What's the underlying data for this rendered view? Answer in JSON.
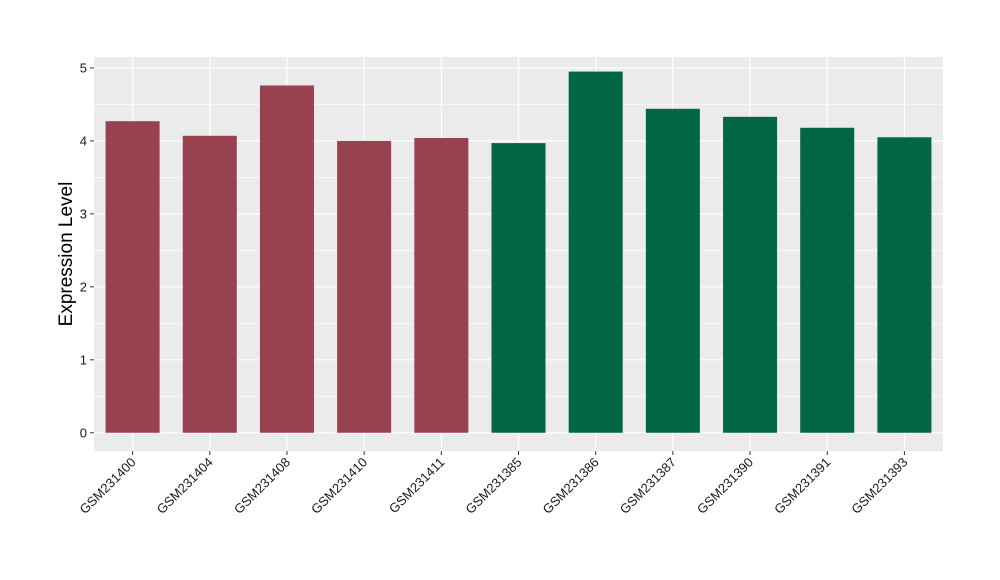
{
  "chart_data": {
    "type": "bar",
    "title": "",
    "xlabel": "",
    "ylabel": "Expression Level",
    "ylim": [
      -0.25,
      5.15
    ],
    "yticks": [
      0,
      1,
      2,
      3,
      4,
      5
    ],
    "grid": true,
    "legend": "none",
    "categories": [
      "GSM231400",
      "GSM231404",
      "GSM231408",
      "GSM231410",
      "GSM231411",
      "GSM231385",
      "GSM231386",
      "GSM231387",
      "GSM231390",
      "GSM231391",
      "GSM231393"
    ],
    "values": [
      4.27,
      4.07,
      4.76,
      4.0,
      4.04,
      3.97,
      4.95,
      4.44,
      4.33,
      4.18,
      4.05
    ],
    "group_of_bar": [
      0,
      0,
      0,
      0,
      0,
      1,
      1,
      1,
      1,
      1,
      1
    ],
    "group_colors": [
      "#98424f",
      "#036644"
    ],
    "panel_color": "#ebebeb",
    "grid_color": "#ffffff"
  }
}
